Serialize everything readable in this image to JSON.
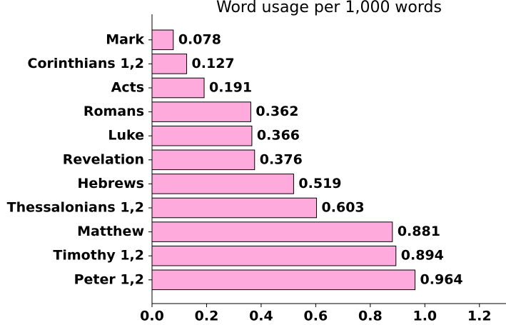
{
  "chart_data": {
    "type": "barh",
    "title": "Word usage per 1,000 words",
    "categories": [
      "Mark",
      "Corinthians 1,2",
      "Acts",
      "Romans",
      "Luke",
      "Revelation",
      "Hebrews",
      "Thessalonians 1,2",
      "Matthew",
      "Timothy 1,2",
      "Peter 1,2"
    ],
    "values": [
      0.078,
      0.127,
      0.191,
      0.362,
      0.366,
      0.376,
      0.519,
      0.603,
      0.881,
      0.894,
      0.964
    ],
    "color": "#ffaadd",
    "xlim": [
      0,
      1.3
    ],
    "xticks": [
      {
        "value": 0,
        "label": "0.0"
      },
      0.2,
      0.4,
      0.6,
      0.8,
      {
        "value": 1,
        "label": "1.0"
      },
      1.2
    ]
  }
}
